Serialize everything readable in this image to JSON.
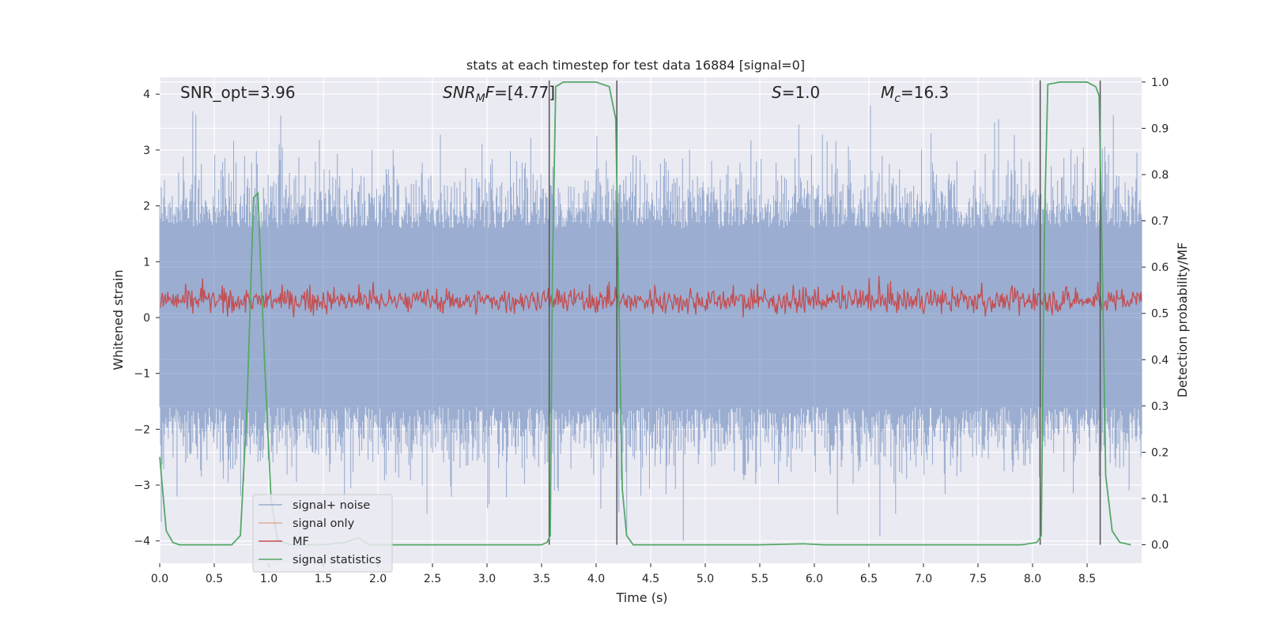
{
  "chart_data": {
    "type": "line",
    "title": "stats at each timestep for test data 16884 [signal=0]",
    "xlabel": "Time (s)",
    "ylabel": "Whitened strain",
    "ylabel_right": "Detection probability/MF",
    "xlim": [
      0,
      9
    ],
    "ylim": [
      -4.4,
      4.3
    ],
    "ylim_right": [
      -0.04,
      1.01
    ],
    "xticks": [
      0.0,
      0.5,
      1.0,
      1.5,
      2.0,
      2.5,
      3.0,
      3.5,
      4.0,
      4.5,
      5.0,
      5.5,
      6.0,
      6.5,
      7.0,
      7.5,
      8.0,
      8.5
    ],
    "xtick_labels": [
      "0.0",
      "0.5",
      "1.0",
      "1.5",
      "2.0",
      "2.5",
      "3.0",
      "3.5",
      "4.0",
      "4.5",
      "5.0",
      "5.5",
      "6.0",
      "6.5",
      "7.0",
      "7.5",
      "8.0",
      "8.5"
    ],
    "yticks": [
      4,
      3,
      2,
      1,
      0,
      -1,
      -2,
      -3,
      -4
    ],
    "ytick_labels": [
      "4",
      "3",
      "2",
      "1",
      "0",
      "−1",
      "−2",
      "−3",
      "−4"
    ],
    "yticks_right": [
      1.0,
      0.9,
      0.8,
      0.7,
      0.6,
      0.5,
      0.4,
      0.3,
      0.2,
      0.1,
      0.0
    ],
    "ytick_labels_right": [
      "1.0",
      "0.9",
      "0.8",
      "0.7",
      "0.6",
      "0.5",
      "0.4",
      "0.3",
      "0.2",
      "0.1",
      "0.0"
    ],
    "grid": true,
    "legend_position": "lower-left",
    "annotations": {
      "snr_opt": "SNR_opt=3.96",
      "snr_mf_main": "SNR",
      "snr_mf_sub": "M",
      "snr_mf_rest": "F",
      "snr_mf_value": "=[4.77]",
      "s_symbol": "S",
      "s_value": "=1.0",
      "mc_symbol": "M",
      "mc_sub": "c",
      "mc_value": "=16.3"
    },
    "vlines_x": [
      3.57,
      4.19,
      8.07,
      8.62
    ],
    "series": [
      {
        "name": "signal+ noise",
        "color": "#4c72b0",
        "axis": "left",
        "description_envelope": {
          "x_range": [
            0,
            9
          ],
          "typical_amplitude": 1.6,
          "peak_max": 3.8,
          "peak_min": -4.0
        }
      },
      {
        "name": "signal only",
        "color": "#dd8452",
        "axis": "left",
        "values": []
      },
      {
        "name": "MF",
        "color": "#c44e52",
        "axis": "left",
        "description_band": {
          "x_range": [
            0,
            9
          ],
          "low": 0.0,
          "high": 0.6,
          "peak": 1.0
        }
      },
      {
        "name": "signal statistics",
        "color": "#55a868",
        "axis": "right",
        "x": [
          0.0,
          0.06,
          0.12,
          0.18,
          0.3,
          0.5,
          0.66,
          0.74,
          0.8,
          0.86,
          0.9,
          0.96,
          1.02,
          1.08,
          1.2,
          1.5,
          1.7,
          1.82,
          1.92,
          2.1,
          2.6,
          3.2,
          3.5,
          3.55,
          3.58,
          3.6,
          3.63,
          3.7,
          4.0,
          4.12,
          4.18,
          4.21,
          4.24,
          4.28,
          4.34,
          4.5,
          5.0,
          5.5,
          5.9,
          6.1,
          7.0,
          7.9,
          8.04,
          8.08,
          8.11,
          8.14,
          8.25,
          8.5,
          8.58,
          8.61,
          8.64,
          8.67,
          8.73,
          8.8,
          8.9
        ],
        "y": [
          0.19,
          0.03,
          0.005,
          0.0,
          0.0,
          0.0,
          0.0,
          0.02,
          0.3,
          0.75,
          0.76,
          0.4,
          0.1,
          0.01,
          0.0,
          0.0,
          0.005,
          0.015,
          0.0,
          0.0,
          0.0,
          0.0,
          0.0,
          0.005,
          0.02,
          0.6,
          0.99,
          1.0,
          1.0,
          0.99,
          0.92,
          0.5,
          0.12,
          0.02,
          0.0,
          0.0,
          0.0,
          0.0,
          0.002,
          0.0,
          0.0,
          0.0,
          0.005,
          0.02,
          0.7,
          0.995,
          1.0,
          1.0,
          0.99,
          0.97,
          0.6,
          0.15,
          0.03,
          0.005,
          0.0
        ]
      }
    ]
  }
}
